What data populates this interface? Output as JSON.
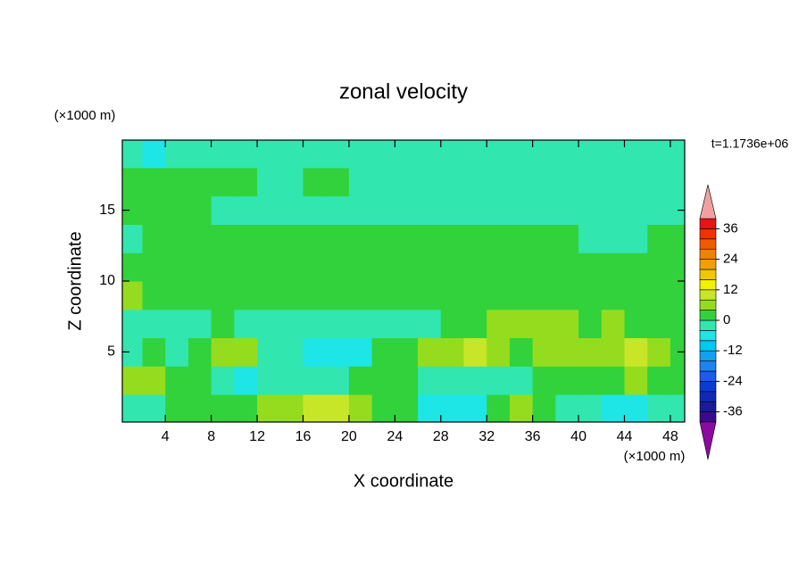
{
  "chart_data": {
    "type": "contour",
    "title": "zonal velocity",
    "x_label": "X coordinate",
    "y_label": "Z coordinate",
    "x_unit": "(×1000 m)",
    "y_unit": "(×1000 m)",
    "annotation": "t=1.1736e+06",
    "xlim": [
      0.25,
      49.25
    ],
    "ylim": [
      0.05,
      19.95
    ],
    "xticks": [
      4,
      8,
      12,
      16,
      20,
      24,
      28,
      32,
      36,
      40,
      44,
      48
    ],
    "yticks": [
      5,
      10,
      15
    ],
    "x": [
      1,
      3,
      5,
      7,
      9,
      11,
      13,
      15,
      17,
      19,
      21,
      23,
      25,
      27,
      29,
      31,
      33,
      35,
      37,
      39,
      41,
      43,
      45,
      47,
      49
    ],
    "y": [
      1,
      3,
      5,
      7,
      9,
      11,
      13,
      15,
      17,
      19
    ],
    "z": [
      [
        -2,
        -2,
        2,
        2,
        2,
        2,
        6,
        6,
        10,
        10,
        6,
        2,
        2,
        -6,
        -6,
        -6,
        2,
        6,
        2,
        -2,
        -2,
        -6,
        -6,
        -2,
        -2
      ],
      [
        6,
        6,
        2,
        2,
        -2,
        -6,
        -2,
        -2,
        -2,
        -2,
        2,
        2,
        2,
        -2,
        -2,
        -2,
        -2,
        -2,
        2,
        2,
        2,
        2,
        6,
        2,
        2
      ],
      [
        -2,
        2,
        -2,
        2,
        6,
        6,
        -2,
        -2,
        -6,
        -6,
        -6,
        2,
        2,
        6,
        6,
        10,
        6,
        2,
        6,
        6,
        6,
        6,
        10,
        6,
        2
      ],
      [
        -2,
        -2,
        -2,
        -2,
        2,
        -2,
        -2,
        -2,
        -2,
        -2,
        -2,
        -2,
        -2,
        -2,
        2,
        2,
        6,
        6,
        6,
        6,
        2,
        6,
        2,
        2,
        2
      ],
      [
        6,
        2,
        2,
        2,
        2,
        2,
        2,
        2,
        2,
        2,
        2,
        2,
        2,
        2,
        2,
        2,
        2,
        2,
        2,
        2,
        2,
        2,
        2,
        2,
        2
      ],
      [
        2,
        2,
        2,
        2,
        2,
        2,
        2,
        2,
        2,
        2,
        2,
        2,
        2,
        2,
        2,
        2,
        2,
        2,
        2,
        2,
        2,
        2,
        2,
        2,
        2
      ],
      [
        -2,
        2,
        2,
        2,
        2,
        2,
        2,
        2,
        2,
        2,
        2,
        2,
        2,
        2,
        2,
        2,
        2,
        2,
        2,
        2,
        -2,
        -2,
        -2,
        2,
        2
      ],
      [
        2,
        2,
        2,
        2,
        -2,
        -2,
        -2,
        -2,
        -2,
        -2,
        -2,
        -2,
        -2,
        -2,
        -2,
        -2,
        -2,
        -2,
        -2,
        -2,
        -2,
        -2,
        -2,
        -2,
        -2
      ],
      [
        2,
        2,
        2,
        2,
        2,
        2,
        -2,
        -2,
        2,
        2,
        -2,
        -2,
        -2,
        -2,
        -2,
        -2,
        -2,
        -2,
        -2,
        -2,
        -2,
        -2,
        -2,
        -2,
        -2
      ],
      [
        -2,
        -6,
        -2,
        -2,
        -2,
        -2,
        -2,
        -2,
        -2,
        -2,
        -2,
        -2,
        -2,
        -2,
        -2,
        -2,
        -2,
        -2,
        -2,
        -2,
        -2,
        -2,
        -2,
        -2,
        -2
      ]
    ],
    "levels": [
      -40,
      -36,
      -32,
      -28,
      -24,
      -20,
      -16,
      -12,
      -8,
      -4,
      0,
      4,
      8,
      12,
      16,
      20,
      24,
      28,
      32,
      36,
      40
    ],
    "colors": [
      "#8c0aa0",
      "#3a0a8c",
      "#1a1a9a",
      "#1028b4",
      "#0a3cd2",
      "#1e5af0",
      "#1e82f0",
      "#14a0f0",
      "#00c8f0",
      "#1ee6e6",
      "#32e6b0",
      "#32d23c",
      "#96dc1e",
      "#c8e628",
      "#f0f000",
      "#f0c800",
      "#f0a000",
      "#f08200",
      "#f05a00",
      "#f03200",
      "#e61414",
      "#f0a0a0"
    ],
    "cbar_ticks": [
      -36,
      -24,
      -12,
      0,
      12,
      24,
      36
    ]
  }
}
